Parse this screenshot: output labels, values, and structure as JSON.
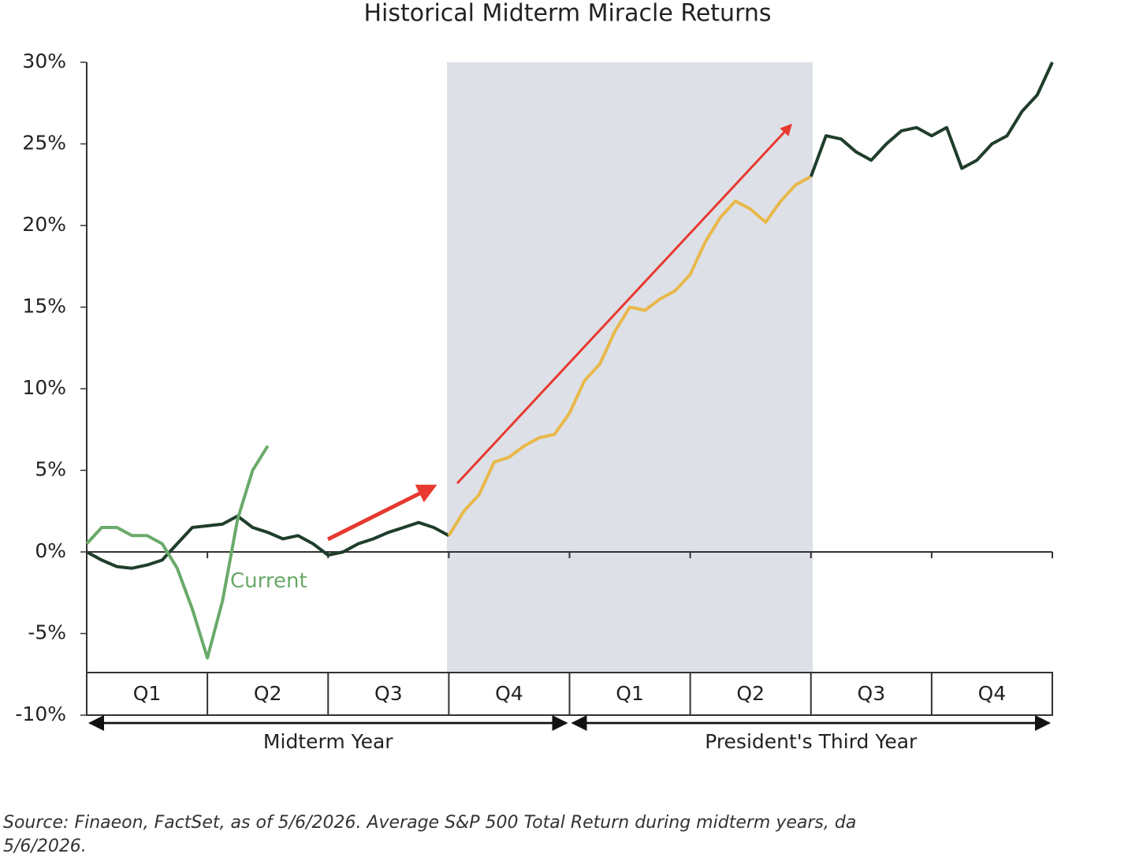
{
  "chart_data": {
    "type": "line",
    "title": "Historical Midterm Miracle Returns",
    "ylim": [
      -10,
      30
    ],
    "yticks": [
      {
        "value": -10,
        "label": "-10%"
      },
      {
        "value": -5,
        "label": "-5%"
      },
      {
        "value": 0,
        "label": "0%"
      },
      {
        "value": 5,
        "label": "5%"
      },
      {
        "value": 10,
        "label": "10%"
      },
      {
        "value": 15,
        "label": "15%"
      },
      {
        "value": 20,
        "label": "20%"
      },
      {
        "value": 25,
        "label": "25%"
      },
      {
        "value": 30,
        "label": "30%"
      }
    ],
    "quarters": [
      "Q1",
      "Q2",
      "Q3",
      "Q4",
      "Q1",
      "Q2",
      "Q3",
      "Q4"
    ],
    "periods": [
      "Midterm Year",
      "President's Third Year"
    ],
    "series": [
      {
        "color": "#1f3d2b",
        "values": [
          0.0,
          -0.5,
          -0.9,
          -1.0,
          -0.8,
          -0.5,
          0.5,
          1.5,
          1.6,
          1.7,
          2.2,
          1.5,
          1.2,
          0.8,
          1.0,
          0.5,
          -0.2,
          0.0,
          0.5,
          0.8,
          1.2,
          1.5,
          1.8,
          1.5,
          1.0,
          null,
          null,
          null,
          null,
          null,
          null,
          null,
          null,
          null,
          null,
          null,
          null,
          null,
          null,
          null,
          null,
          null,
          null,
          null,
          null,
          null,
          null,
          null,
          null,
          null,
          null,
          null,
          null,
          null,
          null,
          null,
          null,
          null,
          null,
          null,
          null,
          null,
          null,
          null,
          null
        ]
      },
      {
        "color": "#e8b84a",
        "values": [
          null,
          null,
          null,
          null,
          null,
          null,
          null,
          null,
          null,
          null,
          null,
          null,
          null,
          null,
          null,
          null,
          null,
          null,
          null,
          null,
          null,
          null,
          null,
          null,
          1.0,
          2.5,
          3.5,
          5.5,
          5.8,
          6.5,
          7.0,
          7.2,
          8.5,
          10.5,
          11.5,
          13.5,
          15.0,
          14.8,
          15.5,
          16.0,
          17.0,
          19.0,
          20.5,
          21.5,
          21.0,
          20.2,
          21.5,
          22.5,
          23.0,
          null,
          null,
          null,
          null,
          null,
          null,
          null,
          null,
          null,
          null,
          null,
          null,
          null,
          null,
          null,
          null
        ]
      },
      {
        "color": "#1f3d2b",
        "values": [
          null,
          null,
          null,
          null,
          null,
          null,
          null,
          null,
          null,
          null,
          null,
          null,
          null,
          null,
          null,
          null,
          null,
          null,
          null,
          null,
          null,
          null,
          null,
          null,
          null,
          null,
          null,
          null,
          null,
          null,
          null,
          null,
          null,
          null,
          null,
          null,
          null,
          null,
          null,
          null,
          null,
          null,
          null,
          null,
          null,
          null,
          null,
          null,
          23.0,
          25.5,
          25.3,
          24.5,
          24.0,
          25.0,
          25.8,
          26.0,
          25.5,
          26.0,
          23.5,
          24.0,
          25.0,
          25.5,
          27.0,
          28.0,
          30.0
        ]
      },
      {
        "name": "Current",
        "color": "#6aaa6a",
        "values": [
          0.5,
          1.5,
          1.5,
          1.0,
          1.0,
          0.5,
          -1.0,
          -3.5,
          -6.5,
          -3.0,
          2.0,
          5.0,
          6.5,
          null,
          null,
          null,
          null,
          null,
          null,
          null,
          null,
          null,
          null,
          null,
          null,
          null,
          null,
          null,
          null,
          null,
          null,
          null,
          null,
          null,
          null,
          null,
          null,
          null,
          null,
          null,
          null,
          null,
          null,
          null,
          null,
          null,
          null,
          null,
          null,
          null,
          null,
          null,
          null,
          null,
          null,
          null,
          null,
          null,
          null,
          null,
          null,
          null,
          null,
          null,
          null
        ]
      }
    ],
    "source": [
      "Source: Finaeon, FactSet, as of 5/6/2026. Average S&P 500 Total Return during midterm years, da",
      "5/6/2026."
    ]
  }
}
